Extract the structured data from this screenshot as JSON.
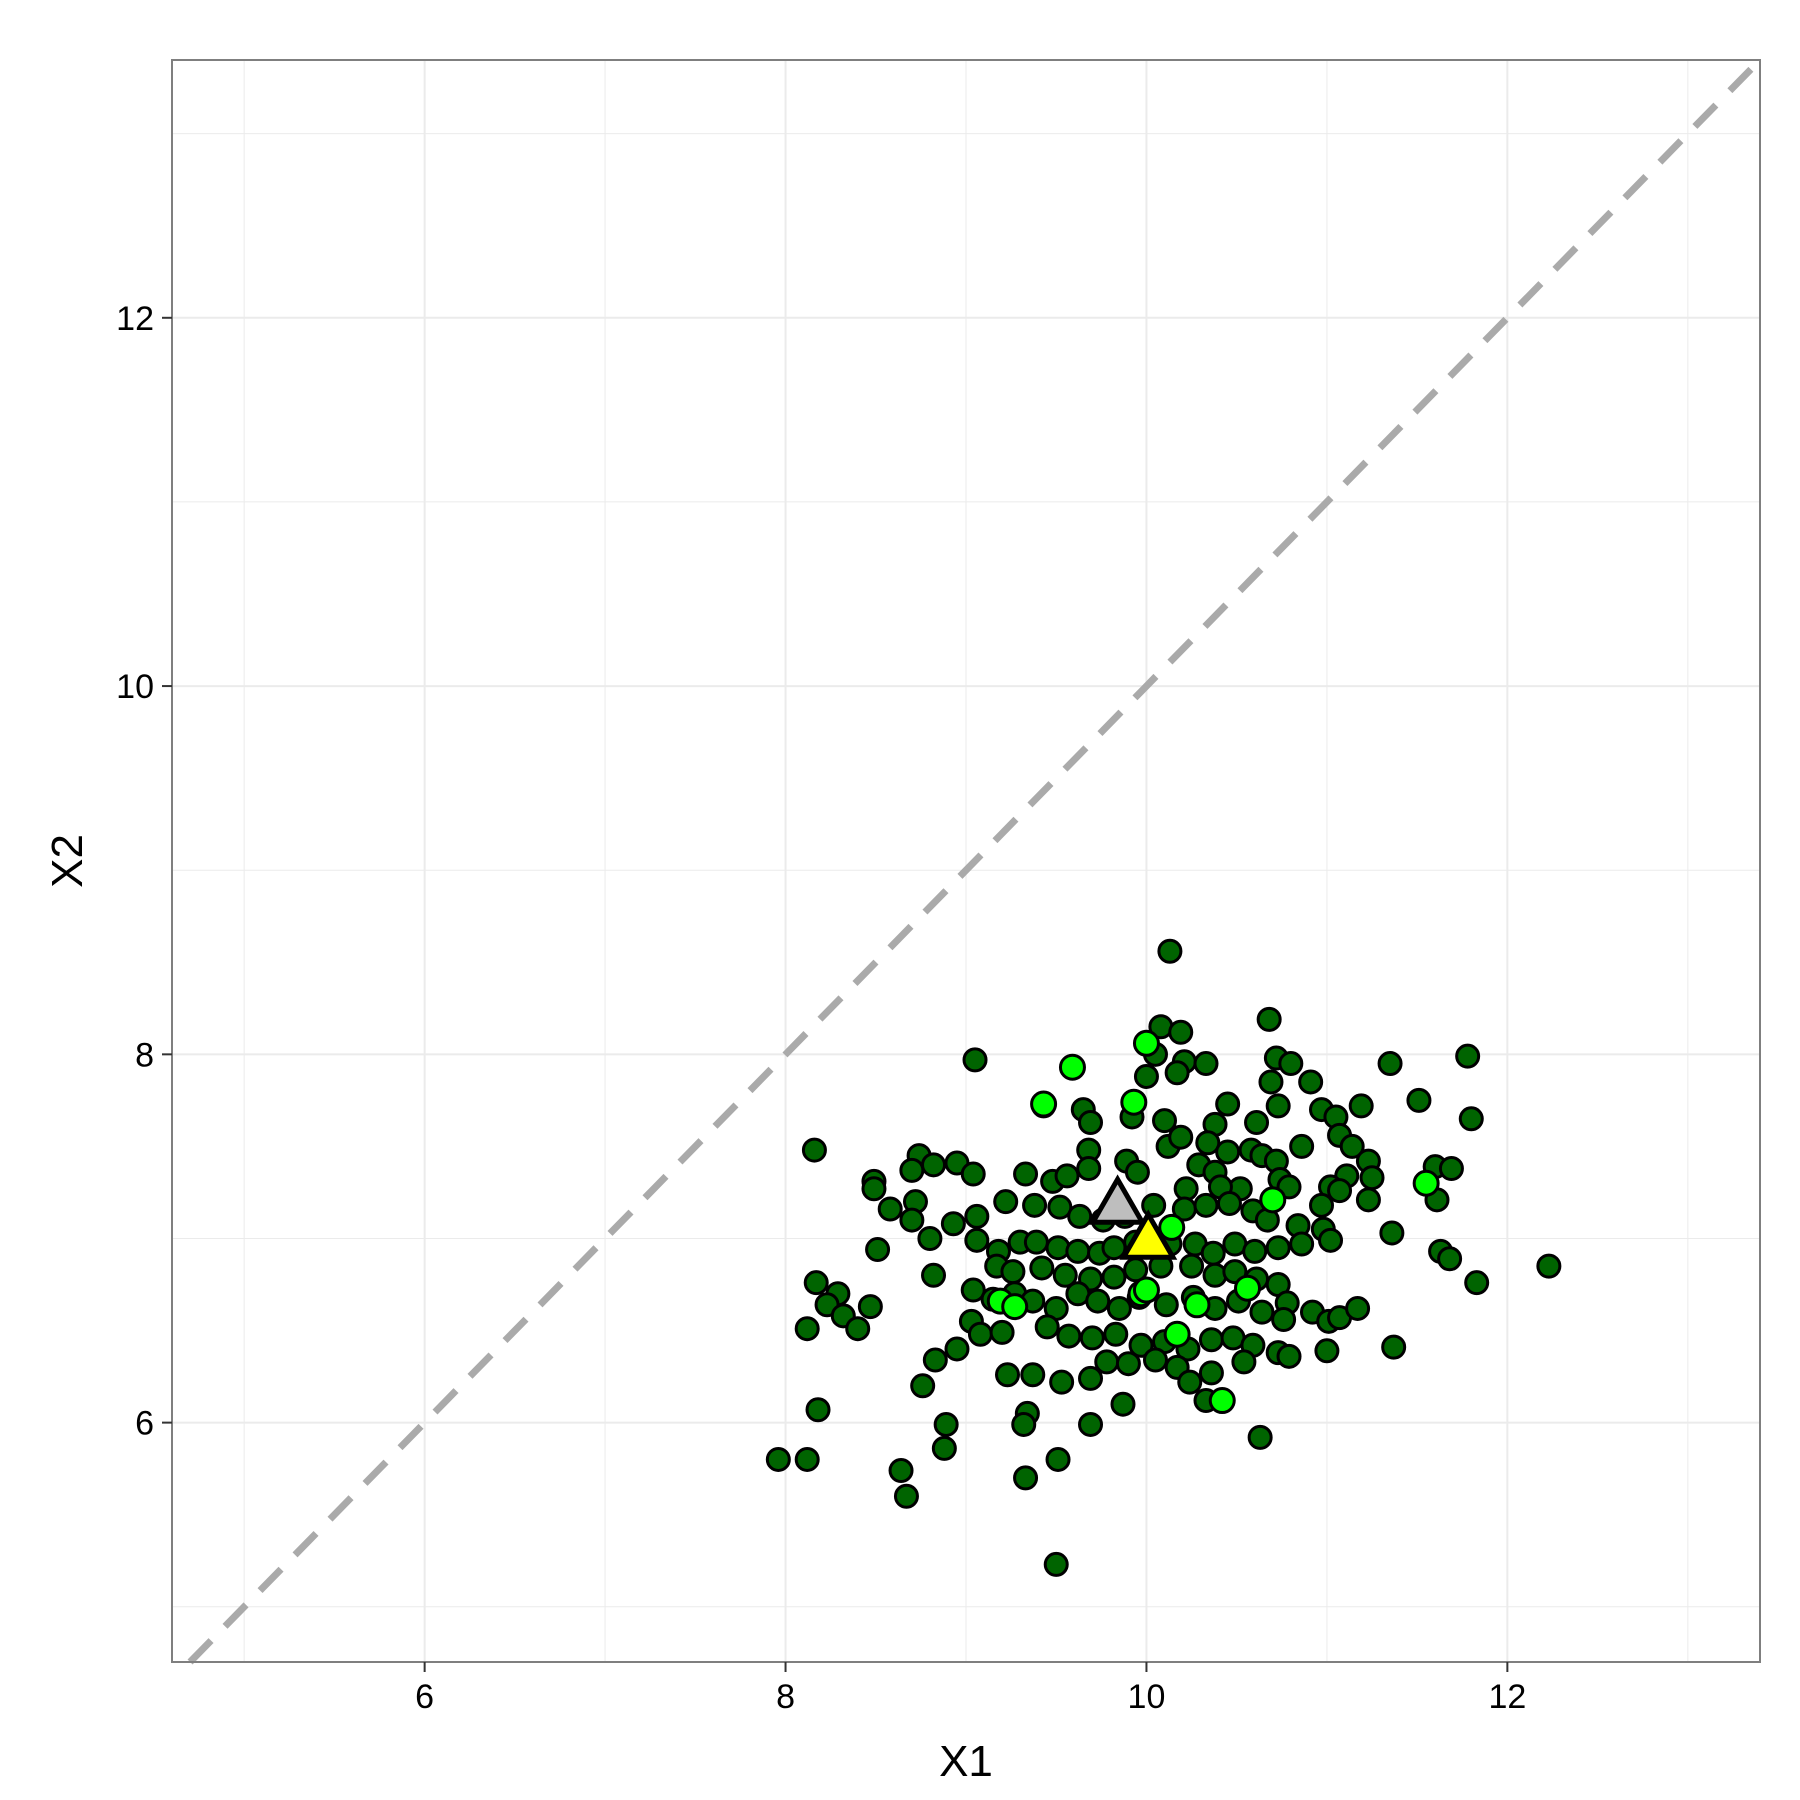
{
  "chart_data": {
    "type": "scatter",
    "title": "",
    "xlabel": "X1",
    "ylabel": "X2",
    "xlim": [
      4.6,
      13.4
    ],
    "ylim": [
      4.7,
      13.4
    ],
    "x_ticks": [
      6,
      8,
      10,
      12
    ],
    "x_tick_labels": [
      "6",
      "8",
      "10",
      "12"
    ],
    "y_ticks": [
      6,
      8,
      10,
      12
    ],
    "y_tick_labels": [
      "6",
      "8",
      "10",
      "12"
    ],
    "grid": true,
    "reference_line": {
      "type": "identity",
      "slope": 1,
      "intercept": 0,
      "style": "dashed",
      "color": "#aaaaaa"
    },
    "colors": {
      "panel_border": "#7f7f7f",
      "grid": "#ebebeb",
      "point_outline": "#000000",
      "group_dark": "#006400",
      "group_light": "#00ff00",
      "marker_gray": "#bebebe",
      "marker_yellow": "#ffff00"
    },
    "series": [
      {
        "color": "#006400",
        "marker": "circle",
        "points": [
          [
            10.13,
            8.56
          ],
          [
            10.68,
            8.19
          ],
          [
            10.08,
            8.15
          ],
          [
            10.19,
            8.12
          ],
          [
            10.05,
            8.0
          ],
          [
            10.21,
            7.96
          ],
          [
            10.72,
            7.98
          ],
          [
            10.8,
            7.95
          ],
          [
            10.33,
            7.95
          ],
          [
            10.17,
            7.9
          ],
          [
            9.05,
            7.97
          ],
          [
            11.35,
            7.95
          ],
          [
            11.78,
            7.99
          ],
          [
            10.69,
            7.85
          ],
          [
            10.91,
            7.85
          ],
          [
            10.0,
            7.88
          ],
          [
            9.65,
            7.7
          ],
          [
            9.43,
            7.72
          ],
          [
            9.69,
            7.63
          ],
          [
            9.92,
            7.66
          ],
          [
            10.1,
            7.64
          ],
          [
            10.45,
            7.73
          ],
          [
            10.38,
            7.62
          ],
          [
            10.61,
            7.63
          ],
          [
            10.73,
            7.72
          ],
          [
            10.97,
            7.7
          ],
          [
            11.05,
            7.66
          ],
          [
            11.19,
            7.72
          ],
          [
            11.51,
            7.75
          ],
          [
            11.8,
            7.65
          ],
          [
            8.16,
            7.48
          ],
          [
            8.74,
            7.45
          ],
          [
            8.95,
            7.41
          ],
          [
            8.82,
            7.4
          ],
          [
            9.04,
            7.35
          ],
          [
            8.7,
            7.37
          ],
          [
            8.49,
            7.31
          ],
          [
            8.49,
            7.27
          ],
          [
            8.72,
            7.2
          ],
          [
            8.58,
            7.16
          ],
          [
            9.33,
            7.35
          ],
          [
            9.48,
            7.31
          ],
          [
            9.56,
            7.34
          ],
          [
            9.68,
            7.48
          ],
          [
            9.68,
            7.38
          ],
          [
            9.89,
            7.42
          ],
          [
            9.95,
            7.36
          ],
          [
            10.12,
            7.5
          ],
          [
            10.19,
            7.55
          ],
          [
            10.29,
            7.4
          ],
          [
            10.38,
            7.36
          ],
          [
            10.34,
            7.52
          ],
          [
            10.45,
            7.47
          ],
          [
            10.58,
            7.48
          ],
          [
            10.64,
            7.45
          ],
          [
            10.72,
            7.42
          ],
          [
            10.86,
            7.5
          ],
          [
            10.74,
            7.32
          ],
          [
            10.79,
            7.28
          ],
          [
            10.52,
            7.27
          ],
          [
            10.41,
            7.28
          ],
          [
            10.22,
            7.27
          ],
          [
            11.07,
            7.56
          ],
          [
            11.14,
            7.5
          ],
          [
            11.23,
            7.42
          ],
          [
            11.11,
            7.34
          ],
          [
            11.02,
            7.28
          ],
          [
            11.07,
            7.26
          ],
          [
            11.25,
            7.33
          ],
          [
            11.6,
            7.39
          ],
          [
            11.69,
            7.38
          ],
          [
            11.61,
            7.21
          ],
          [
            11.23,
            7.21
          ],
          [
            10.97,
            7.18
          ],
          [
            9.22,
            7.2
          ],
          [
            9.38,
            7.18
          ],
          [
            9.52,
            7.17
          ],
          [
            9.63,
            7.12
          ],
          [
            9.76,
            7.1
          ],
          [
            9.88,
            7.12
          ],
          [
            10.04,
            7.18
          ],
          [
            10.21,
            7.16
          ],
          [
            10.33,
            7.18
          ],
          [
            10.46,
            7.19
          ],
          [
            10.59,
            7.15
          ],
          [
            10.67,
            7.1
          ],
          [
            10.84,
            7.07
          ],
          [
            10.98,
            7.05
          ],
          [
            9.06,
            7.12
          ],
          [
            8.93,
            7.08
          ],
          [
            8.7,
            7.1
          ],
          [
            8.8,
            7.0
          ],
          [
            8.51,
            6.94
          ],
          [
            9.06,
            6.99
          ],
          [
            9.18,
            6.93
          ],
          [
            9.3,
            6.98
          ],
          [
            9.39,
            6.98
          ],
          [
            9.51,
            6.95
          ],
          [
            9.62,
            6.93
          ],
          [
            9.74,
            6.92
          ],
          [
            9.82,
            6.95
          ],
          [
            9.94,
            6.98
          ],
          [
            10.13,
            6.97
          ],
          [
            10.27,
            6.97
          ],
          [
            10.37,
            6.92
          ],
          [
            10.49,
            6.97
          ],
          [
            10.6,
            6.93
          ],
          [
            10.73,
            6.95
          ],
          [
            10.86,
            6.97
          ],
          [
            11.02,
            6.99
          ],
          [
            11.36,
            7.03
          ],
          [
            11.63,
            6.93
          ],
          [
            11.68,
            6.89
          ],
          [
            12.23,
            6.85
          ],
          [
            11.83,
            6.76
          ],
          [
            9.17,
            6.85
          ],
          [
            9.26,
            6.82
          ],
          [
            9.42,
            6.84
          ],
          [
            9.55,
            6.8
          ],
          [
            9.69,
            6.78
          ],
          [
            9.82,
            6.79
          ],
          [
            9.94,
            6.83
          ],
          [
            10.08,
            6.85
          ],
          [
            10.25,
            6.85
          ],
          [
            10.38,
            6.8
          ],
          [
            10.49,
            6.82
          ],
          [
            10.61,
            6.78
          ],
          [
            10.73,
            6.75
          ],
          [
            8.82,
            6.8
          ],
          [
            8.17,
            6.76
          ],
          [
            8.29,
            6.7
          ],
          [
            8.23,
            6.64
          ],
          [
            8.32,
            6.58
          ],
          [
            8.47,
            6.63
          ],
          [
            8.4,
            6.51
          ],
          [
            8.12,
            6.51
          ],
          [
            9.04,
            6.72
          ],
          [
            9.15,
            6.67
          ],
          [
            9.27,
            6.7
          ],
          [
            9.37,
            6.66
          ],
          [
            9.5,
            6.62
          ],
          [
            9.62,
            6.7
          ],
          [
            9.73,
            6.66
          ],
          [
            9.85,
            6.62
          ],
          [
            9.96,
            6.68
          ],
          [
            10.11,
            6.64
          ],
          [
            10.26,
            6.68
          ],
          [
            10.38,
            6.62
          ],
          [
            10.51,
            6.66
          ],
          [
            10.64,
            6.6
          ],
          [
            10.78,
            6.65
          ],
          [
            10.92,
            6.6
          ],
          [
            11.01,
            6.55
          ],
          [
            11.07,
            6.57
          ],
          [
            11.17,
            6.62
          ],
          [
            10.76,
            6.56
          ],
          [
            9.03,
            6.55
          ],
          [
            9.08,
            6.48
          ],
          [
            9.2,
            6.49
          ],
          [
            9.45,
            6.52
          ],
          [
            9.57,
            6.47
          ],
          [
            9.7,
            6.46
          ],
          [
            9.83,
            6.48
          ],
          [
            9.97,
            6.42
          ],
          [
            10.1,
            6.44
          ],
          [
            10.23,
            6.4
          ],
          [
            10.36,
            6.45
          ],
          [
            10.48,
            6.46
          ],
          [
            10.59,
            6.42
          ],
          [
            10.73,
            6.38
          ],
          [
            10.79,
            6.36
          ],
          [
            11.0,
            6.39
          ],
          [
            11.37,
            6.41
          ],
          [
            8.95,
            6.4
          ],
          [
            8.83,
            6.34
          ],
          [
            9.23,
            6.26
          ],
          [
            9.37,
            6.26
          ],
          [
            9.53,
            6.22
          ],
          [
            9.69,
            6.24
          ],
          [
            9.78,
            6.33
          ],
          [
            9.9,
            6.32
          ],
          [
            10.05,
            6.34
          ],
          [
            10.17,
            6.3
          ],
          [
            10.24,
            6.22
          ],
          [
            10.36,
            6.27
          ],
          [
            10.54,
            6.33
          ],
          [
            8.76,
            6.2
          ],
          [
            8.18,
            6.07
          ],
          [
            9.34,
            6.05
          ],
          [
            9.32,
            5.99
          ],
          [
            9.87,
            6.1
          ],
          [
            10.33,
            6.12
          ],
          [
            9.69,
            5.99
          ],
          [
            10.63,
            5.92
          ],
          [
            8.89,
            5.99
          ],
          [
            8.88,
            5.86
          ],
          [
            7.96,
            5.8
          ],
          [
            8.12,
            5.8
          ],
          [
            9.51,
            5.8
          ],
          [
            8.64,
            5.74
          ],
          [
            9.33,
            5.7
          ],
          [
            8.67,
            5.6
          ],
          [
            9.5,
            5.23
          ]
        ]
      },
      {
        "color": "#00ff00",
        "marker": "circle",
        "points": [
          [
            10.0,
            8.06
          ],
          [
            9.59,
            7.93
          ],
          [
            9.43,
            7.73
          ],
          [
            9.93,
            7.74
          ],
          [
            11.55,
            7.3
          ],
          [
            10.7,
            7.21
          ],
          [
            10.14,
            7.06
          ],
          [
            9.19,
            6.66
          ],
          [
            9.27,
            6.63
          ],
          [
            9.97,
            6.7
          ],
          [
            10.0,
            6.72
          ],
          [
            10.56,
            6.73
          ],
          [
            10.28,
            6.64
          ],
          [
            10.17,
            6.48
          ],
          [
            10.42,
            6.12
          ]
        ]
      },
      {
        "color": "#bebebe",
        "marker": "triangle",
        "points": [
          [
            9.84,
            7.18
          ]
        ]
      },
      {
        "color": "#ffff00",
        "marker": "triangle",
        "points": [
          [
            10.01,
            6.99
          ]
        ]
      }
    ]
  }
}
